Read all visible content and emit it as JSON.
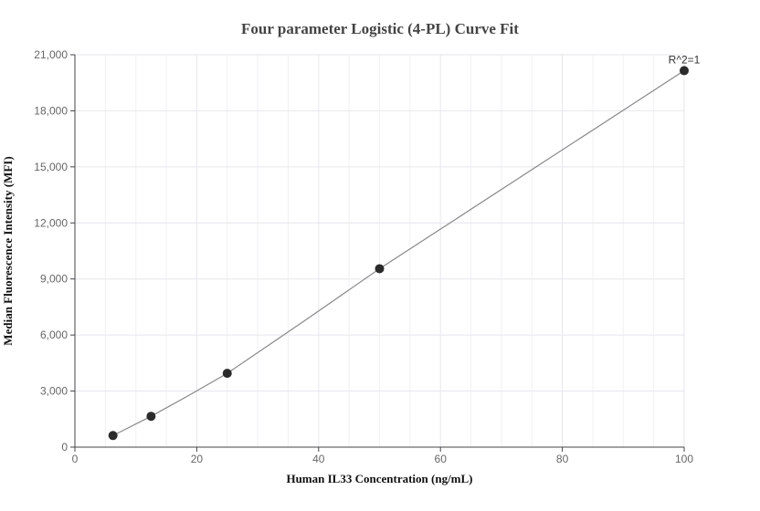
{
  "chart_data": {
    "type": "scatter",
    "title": "Four parameter Logistic (4-PL) Curve Fit",
    "xlabel": "Human IL33 Concentration (ng/mL)",
    "ylabel": "Median Fluorescence Intensity (MFI)",
    "xlim": [
      0,
      100
    ],
    "ylim": [
      0,
      21000
    ],
    "x_ticks": [
      "0",
      "20",
      "40",
      "60",
      "80",
      "100"
    ],
    "y_ticks": [
      "0",
      "3,000",
      "6,000",
      "9,000",
      "12,000",
      "15,000",
      "18,000",
      "21,000"
    ],
    "x_tick_values": [
      0,
      20,
      40,
      60,
      80,
      100
    ],
    "y_tick_values": [
      0,
      3000,
      6000,
      9000,
      12000,
      15000,
      18000,
      21000
    ],
    "grid": true,
    "points": [
      {
        "x": 6.25,
        "y": 620
      },
      {
        "x": 12.5,
        "y": 1650
      },
      {
        "x": 25,
        "y": 3950
      },
      {
        "x": 50,
        "y": 9550
      },
      {
        "x": 100,
        "y": 20150
      }
    ],
    "fit_curve": [
      {
        "x": 6.25,
        "y": 620
      },
      {
        "x": 12.5,
        "y": 1650
      },
      {
        "x": 18.75,
        "y": 2780
      },
      {
        "x": 25,
        "y": 3950
      },
      {
        "x": 37.5,
        "y": 6720
      },
      {
        "x": 50,
        "y": 9550
      },
      {
        "x": 62.5,
        "y": 12200
      },
      {
        "x": 75,
        "y": 14850
      },
      {
        "x": 87.5,
        "y": 17500
      },
      {
        "x": 100,
        "y": 20150
      }
    ],
    "annotation": "R^2=1",
    "colors": {
      "point": "#2b2b2b",
      "curve": "#888888",
      "grid": "#e6e6ee",
      "axis": "#444444"
    }
  }
}
